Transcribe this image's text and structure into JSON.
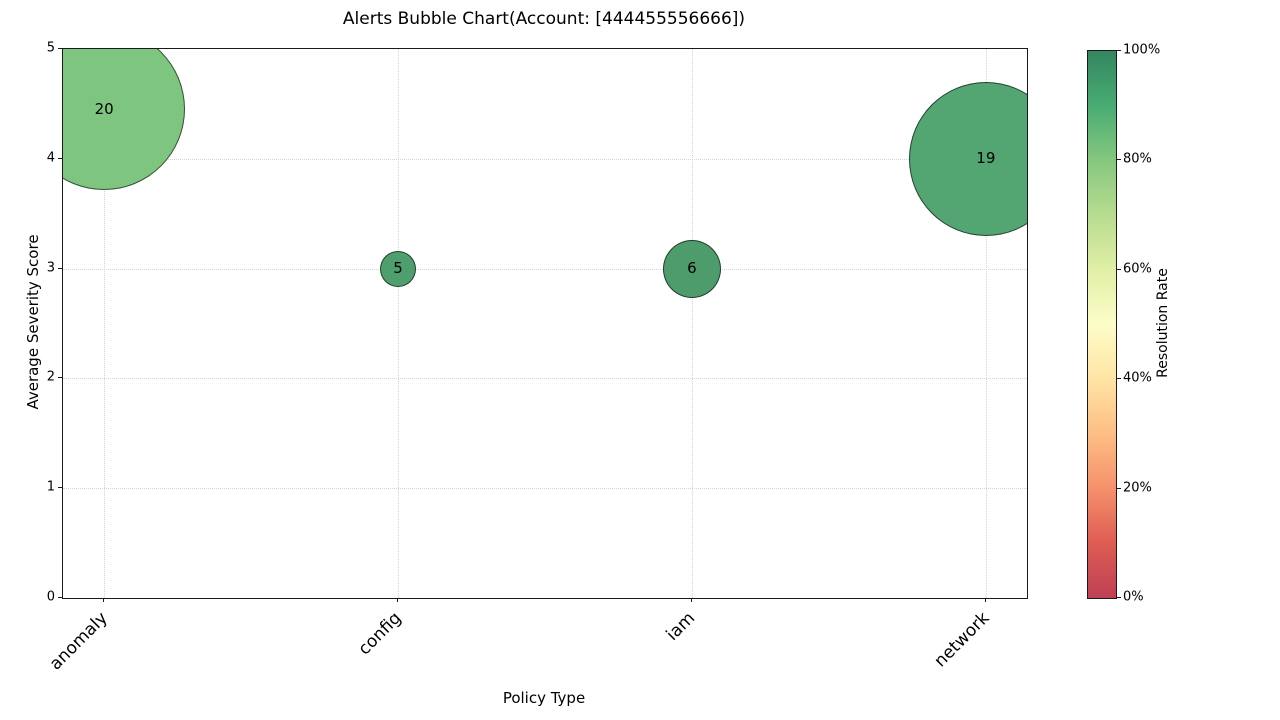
{
  "figure": {
    "title": "Alerts Bubble Chart(Account: [444455556666])",
    "background": "#ffffff"
  },
  "chart_data": {
    "type": "bubble",
    "title": "Alerts Bubble Chart(Account: [444455556666])",
    "xlabel": "Policy Type",
    "ylabel": "Average Severity Score",
    "categories": [
      "anomaly",
      "config",
      "iam",
      "network"
    ],
    "y_ticks": [
      0,
      1,
      2,
      3,
      4,
      5
    ],
    "ylim": [
      0,
      5
    ],
    "x_axis_range": [
      -0.14,
      3.14
    ],
    "grid": "dotted",
    "legend_position": "none",
    "points": [
      {
        "category": "anomaly",
        "x_index": 0,
        "avg_severity": 4.45,
        "alert_count": 20,
        "bubble_radius_px": 81,
        "fill": "#7ec580",
        "resolution_rate_est_pct": 80
      },
      {
        "category": "config",
        "x_index": 1,
        "avg_severity": 3.0,
        "alert_count": 5,
        "bubble_radius_px": 18,
        "fill": "#4f9e6d",
        "resolution_rate_est_pct": 92
      },
      {
        "category": "iam",
        "x_index": 2,
        "avg_severity": 3.0,
        "alert_count": 6,
        "bubble_radius_px": 29,
        "fill": "#4e9b6b",
        "resolution_rate_est_pct": 92
      },
      {
        "category": "network",
        "x_index": 3,
        "avg_severity": 4.0,
        "alert_count": 19,
        "bubble_radius_px": 77,
        "fill": "#53a572",
        "resolution_rate_est_pct": 92
      }
    ],
    "colorbar": {
      "label": "Resolution Rate",
      "tick_labels": [
        "100%",
        "80%",
        "60%",
        "40%",
        "20%",
        "0%"
      ],
      "tick_values": [
        100,
        80,
        60,
        40,
        20,
        0
      ],
      "gradient_top_to_bottom": [
        "#33865f",
        "#48ac73",
        "#85c77e",
        "#b7dc8f",
        "#e0efa6",
        "#fdfdc8",
        "#fee4a4",
        "#fdbe84",
        "#f5906c",
        "#de5c52",
        "#bf4055"
      ]
    },
    "styles": {
      "bubble_edge": "rgba(0,0,0,0.6)",
      "grid_color": "#d4d4d4",
      "spine_color": "#1a1a1a",
      "text_color": "#000000"
    }
  }
}
